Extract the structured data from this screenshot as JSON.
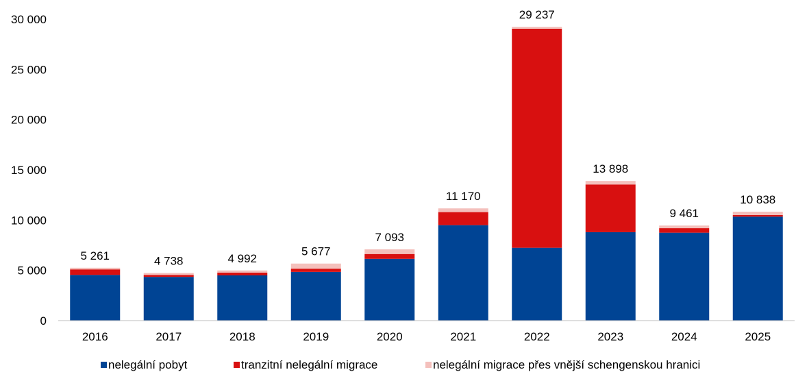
{
  "chart_data": {
    "type": "bar",
    "stacked": true,
    "categories": [
      "2016",
      "2017",
      "2018",
      "2019",
      "2020",
      "2021",
      "2022",
      "2023",
      "2024",
      "2025"
    ],
    "series": [
      {
        "name": "nelegální pobyt",
        "color": "#004494",
        "values": [
          4550,
          4350,
          4500,
          4850,
          6150,
          9500,
          7250,
          8800,
          8750,
          10350
        ]
      },
      {
        "name": "tranzitní nelegální migrace",
        "color": "#D81010",
        "values": [
          550,
          200,
          280,
          320,
          480,
          1300,
          21800,
          4750,
          450,
          150
        ]
      },
      {
        "name": "nelegální migrace přes vnější schengenskou hranici",
        "color": "#F4C0BC",
        "values": [
          161,
          188,
          212,
          507,
          463,
          370,
          187,
          348,
          261,
          338
        ]
      }
    ],
    "totals": [
      5261,
      4738,
      4992,
      5677,
      7093,
      11170,
      29237,
      13898,
      9461,
      10838
    ],
    "total_labels": [
      "5 261",
      "4 738",
      "4 992",
      "5 677",
      "7 093",
      "11 170",
      "29 237",
      "13 898",
      "9 461",
      "10 838"
    ],
    "yticks": [
      0,
      5000,
      10000,
      15000,
      20000,
      25000,
      30000
    ],
    "ytick_labels": [
      "0",
      "5 000",
      "10 000",
      "15 000",
      "20 000",
      "25 000",
      "30 000"
    ],
    "ylim": [
      0,
      30000
    ],
    "grid": false,
    "legend_position": "bottom",
    "title": "",
    "xlabel": "",
    "ylabel": ""
  }
}
